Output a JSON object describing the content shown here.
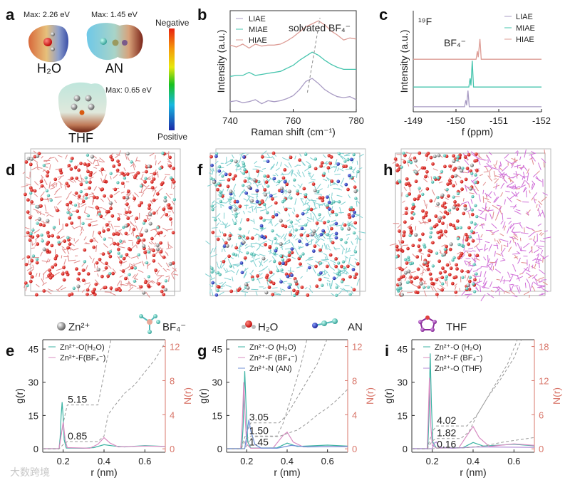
{
  "panels": {
    "a": "a",
    "b": "b",
    "c": "c",
    "d": "d",
    "f": "f",
    "h": "h",
    "e": "e",
    "g": "g",
    "i": "i"
  },
  "esp": {
    "h2o": {
      "name": "H₂O",
      "max": "Max: 2.26 eV"
    },
    "an": {
      "name": "AN",
      "max": "Max: 1.45 eV"
    },
    "thf": {
      "name": "THF",
      "max": "Max: 0.65 eV"
    },
    "colorbar": {
      "top": "Negative",
      "bottom": "Positive"
    }
  },
  "species_legend": [
    "Zn²⁺",
    "BF₄⁻",
    "H₂O",
    "AN",
    "THF"
  ],
  "watermark": "大数跨境",
  "colors": {
    "liae": "#a99cc4",
    "miae": "#45c4ad",
    "hiae": "#dd9c95",
    "teal": "#3cb3a3",
    "pink": "#d88cc2",
    "blue": "#6f8fd6",
    "purple": "#b38ad6",
    "naxis": "#d9776b"
  },
  "chart_data": [
    {
      "id": "b",
      "type": "line",
      "xlabel": "Raman shift (cm⁻¹)",
      "ylabel": "Intensity (a.u.)",
      "xlim": [
        740,
        780
      ],
      "ylim": [
        0,
        10
      ],
      "xticks": [
        740,
        760,
        780
      ],
      "annotation": "solvated BF₄⁻",
      "guide": [
        [
          764.5,
          1.9
        ],
        [
          768.5,
          9.3
        ]
      ],
      "x": [
        740,
        742,
        744,
        746,
        748,
        750,
        752,
        754,
        756,
        758,
        760,
        762,
        764,
        766,
        768,
        770,
        772,
        774,
        776,
        778,
        780
      ],
      "series": [
        {
          "name": "LIAE",
          "color": "#a99cc4",
          "values": [
            1.0,
            1.1,
            0.9,
            1.0,
            1.2,
            0.8,
            1.1,
            1.0,
            1.1,
            1.3,
            1.6,
            2.2,
            3.0,
            3.3,
            2.8,
            2.2,
            1.8,
            1.5,
            1.4,
            1.5,
            1.2
          ]
        },
        {
          "name": "MIAE",
          "color": "#45c4ad",
          "values": [
            3.5,
            3.6,
            3.6,
            3.9,
            3.6,
            3.7,
            3.8,
            3.9,
            4.0,
            4.3,
            4.6,
            5.1,
            5.5,
            5.9,
            5.6,
            5.1,
            4.7,
            4.4,
            4.2,
            4.2,
            4.2
          ]
        },
        {
          "name": "HIAE",
          "color": "#dd9c95",
          "values": [
            6.6,
            6.4,
            6.7,
            6.3,
            6.7,
            6.5,
            6.6,
            6.6,
            6.7,
            7.0,
            7.4,
            7.9,
            8.4,
            8.7,
            9.0,
            8.6,
            8.0,
            7.6,
            7.1,
            7.3,
            7.2
          ]
        }
      ]
    },
    {
      "id": "c",
      "type": "line",
      "xlabel": "f (ppm)",
      "ylabel": "Intensity (a.u.)",
      "nucleus": "¹⁹F",
      "annotation": "BF₄⁻",
      "xlim": [
        -149,
        -152
      ],
      "ylim": [
        0,
        20
      ],
      "xticks": [
        -149,
        -150,
        -151,
        -152
      ],
      "series": [
        {
          "name": "LIAE",
          "color": "#a99cc4",
          "points": [
            [
              -149,
              1
            ],
            [
              -150.2,
              1
            ],
            [
              -150.23,
              2.3
            ],
            [
              -150.25,
              1.3
            ],
            [
              -150.28,
              4.2
            ],
            [
              -150.31,
              1
            ],
            [
              -152,
              1
            ]
          ]
        },
        {
          "name": "MIAE",
          "color": "#45c4ad",
          "points": [
            [
              -149,
              4.9
            ],
            [
              -150.3,
              4.9
            ],
            [
              -150.33,
              6.6
            ],
            [
              -150.35,
              5.2
            ],
            [
              -150.38,
              10.1
            ],
            [
              -150.41,
              4.9
            ],
            [
              -152,
              4.9
            ]
          ]
        },
        {
          "name": "HIAE",
          "color": "#dd9c95",
          "points": [
            [
              -149,
              10.4
            ],
            [
              -150.47,
              10.4
            ],
            [
              -150.5,
              12
            ],
            [
              -150.52,
              10.8
            ],
            [
              -150.56,
              14.4
            ],
            [
              -150.59,
              10.4
            ],
            [
              -152,
              10.4
            ]
          ]
        }
      ]
    },
    {
      "id": "e",
      "type": "line",
      "xlabel": "r (nm)",
      "ylabel": "g(r)",
      "y2label": "N(r)",
      "xlim": [
        0.1,
        0.7
      ],
      "ylim": [
        -1.6,
        49.2
      ],
      "y2lim": [
        -0.4,
        12.8
      ],
      "xticks": [
        0.2,
        0.4,
        0.6
      ],
      "yticks": [
        0,
        15,
        30,
        45
      ],
      "y2ticks": [
        0,
        4,
        8,
        12
      ],
      "series": [
        {
          "name": "Zn²⁺-O(H₂O)",
          "color": "#3cb3a3",
          "g": [
            [
              0.1,
              0
            ],
            [
              0.18,
              0
            ],
            [
              0.185,
              5
            ],
            [
              0.19,
              15
            ],
            [
              0.195,
              21
            ],
            [
              0.2,
              14
            ],
            [
              0.205,
              4
            ],
            [
              0.215,
              0.3
            ],
            [
              0.3,
              0.2
            ],
            [
              0.35,
              0.5
            ],
            [
              0.4,
              1.8
            ],
            [
              0.45,
              1.2
            ],
            [
              0.5,
              0.8
            ],
            [
              0.6,
              1.4
            ],
            [
              0.7,
              1.0
            ]
          ],
          "n": [
            [
              0.1,
              0
            ],
            [
              0.18,
              0
            ],
            [
              0.2,
              3
            ],
            [
              0.22,
              5.15
            ],
            [
              0.37,
              5.15
            ],
            [
              0.44,
              13.5
            ]
          ],
          "cn": "5.15",
          "cn_at": 0.27
        },
        {
          "name": "Zn²⁺-F(BF₄⁻)",
          "color": "#d88cc2",
          "g": [
            [
              0.1,
              0
            ],
            [
              0.18,
              0
            ],
            [
              0.19,
              6
            ],
            [
              0.2,
              12
            ],
            [
              0.21,
              4
            ],
            [
              0.22,
              0.5
            ],
            [
              0.33,
              0.2
            ],
            [
              0.37,
              2
            ],
            [
              0.4,
              5
            ],
            [
              0.43,
              2.5
            ],
            [
              0.47,
              0.8
            ],
            [
              0.6,
              1.2
            ],
            [
              0.7,
              1
            ]
          ],
          "n": [
            [
              0.1,
              0
            ],
            [
              0.18,
              0
            ],
            [
              0.2,
              0.5
            ],
            [
              0.22,
              0.85
            ],
            [
              0.37,
              0.85
            ],
            [
              0.4,
              1.5
            ],
            [
              0.42,
              4
            ],
            [
              0.45,
              5
            ],
            [
              0.5,
              6.5
            ],
            [
              0.55,
              7.5
            ],
            [
              0.6,
              9
            ],
            [
              0.65,
              10.5
            ],
            [
              0.7,
              12.5
            ]
          ],
          "cn": "0.85",
          "cn_at": 0.27
        }
      ]
    },
    {
      "id": "g",
      "type": "line",
      "xlabel": "r (nm)",
      "ylabel": "g(r)",
      "y2label": "N(r)",
      "xlim": [
        0.1,
        0.7
      ],
      "ylim": [
        -1.6,
        49.2
      ],
      "y2lim": [
        -0.4,
        12.8
      ],
      "xticks": [
        0.2,
        0.4,
        0.6
      ],
      "yticks": [
        0,
        15,
        30,
        45
      ],
      "y2ticks": [
        0,
        4,
        8,
        12
      ],
      "series": [
        {
          "name": "Zn²⁺-O (H₂O)",
          "color": "#3cb3a3",
          "g": [
            [
              0.1,
              0
            ],
            [
              0.175,
              0
            ],
            [
              0.182,
              10
            ],
            [
              0.19,
              35
            ],
            [
              0.197,
              18
            ],
            [
              0.205,
              3
            ],
            [
              0.22,
              0.3
            ],
            [
              0.35,
              0.4
            ],
            [
              0.4,
              2.5
            ],
            [
              0.45,
              1
            ],
            [
              0.6,
              1.6
            ],
            [
              0.7,
              1.2
            ]
          ],
          "n": [
            [
              0.1,
              0
            ],
            [
              0.17,
              0
            ],
            [
              0.2,
              2
            ],
            [
              0.22,
              3.05
            ],
            [
              0.36,
              3.05
            ],
            [
              0.4,
              4
            ],
            [
              0.45,
              6
            ],
            [
              0.5,
              8
            ],
            [
              0.55,
              10
            ],
            [
              0.6,
              13
            ]
          ],
          "cn": "3.05",
          "cn_at": 0.26
        },
        {
          "name": "Zn²⁺-F (BF₄⁻)",
          "color": "#d88cc2",
          "g": [
            [
              0.1,
              0
            ],
            [
              0.17,
              0
            ],
            [
              0.178,
              12
            ],
            [
              0.185,
              30
            ],
            [
              0.193,
              12
            ],
            [
              0.2,
              2
            ],
            [
              0.22,
              0.2
            ],
            [
              0.33,
              0.3
            ],
            [
              0.38,
              6
            ],
            [
              0.4,
              7.5
            ],
            [
              0.43,
              3
            ],
            [
              0.48,
              0.8
            ],
            [
              0.7,
              1
            ]
          ],
          "n": [
            [
              0.1,
              0
            ],
            [
              0.17,
              0
            ],
            [
              0.2,
              1.2
            ],
            [
              0.22,
              1.5
            ],
            [
              0.35,
              1.5
            ],
            [
              0.38,
              3
            ],
            [
              0.42,
              6
            ],
            [
              0.47,
              10
            ],
            [
              0.5,
              13
            ]
          ],
          "cn": "1.50",
          "cn_at": 0.26
        },
        {
          "name": "Zn²⁺-N (AN)",
          "color": "#6f8fd6",
          "g": [
            [
              0.1,
              0
            ],
            [
              0.19,
              0
            ],
            [
              0.2,
              6
            ],
            [
              0.21,
              13
            ],
            [
              0.22,
              8
            ],
            [
              0.24,
              2
            ],
            [
              0.27,
              0.3
            ],
            [
              0.35,
              0.2
            ],
            [
              0.42,
              1.5
            ],
            [
              0.5,
              0.8
            ],
            [
              0.7,
              0.9
            ]
          ],
          "n": [
            [
              0.1,
              0
            ],
            [
              0.19,
              0
            ],
            [
              0.22,
              1.2
            ],
            [
              0.25,
              1.45
            ],
            [
              0.36,
              1.45
            ],
            [
              0.4,
              1.8
            ],
            [
              0.45,
              2.2
            ],
            [
              0.5,
              3
            ],
            [
              0.55,
              4
            ],
            [
              0.6,
              4.8
            ],
            [
              0.65,
              5.8
            ],
            [
              0.7,
              7
            ]
          ],
          "cn": "1.45",
          "cn_at": 0.26
        }
      ]
    },
    {
      "id": "i",
      "type": "line",
      "xlabel": "r (nm)",
      "ylabel": "g(r)",
      "y2label": "N(r)",
      "xlim": [
        0.1,
        0.7
      ],
      "ylim": [
        -1.6,
        49.2
      ],
      "y2lim": [
        -0.6,
        19.2
      ],
      "xticks": [
        0.2,
        0.4,
        0.6
      ],
      "yticks": [
        0,
        15,
        30,
        45
      ],
      "y2ticks": [
        0,
        6,
        12,
        18
      ],
      "series": [
        {
          "name": "Zn²⁺-O (H₂O)",
          "color": "#3cb3a3",
          "g": [
            [
              0.1,
              0
            ],
            [
              0.178,
              0
            ],
            [
              0.184,
              15
            ],
            [
              0.19,
              43
            ],
            [
              0.196,
              20
            ],
            [
              0.203,
              3
            ],
            [
              0.22,
              0.3
            ],
            [
              0.35,
              0.5
            ],
            [
              0.4,
              2.8
            ],
            [
              0.45,
              1.2
            ],
            [
              0.6,
              2
            ],
            [
              0.7,
              1.3
            ]
          ],
          "n": [
            [
              0.1,
              0
            ],
            [
              0.175,
              0
            ],
            [
              0.2,
              3
            ],
            [
              0.22,
              4.02
            ],
            [
              0.37,
              4.02
            ],
            [
              0.42,
              6
            ],
            [
              0.47,
              9
            ],
            [
              0.52,
              12
            ],
            [
              0.57,
              15
            ],
            [
              0.62,
              19.5
            ]
          ],
          "cn": "4.02",
          "cn_at": 0.27
        },
        {
          "name": "Zn²⁺-F (BF₄⁻)",
          "color": "#d88cc2",
          "g": [
            [
              0.1,
              0
            ],
            [
              0.175,
              0
            ],
            [
              0.18,
              12
            ],
            [
              0.186,
              32
            ],
            [
              0.193,
              10
            ],
            [
              0.2,
              1.5
            ],
            [
              0.22,
              0.3
            ],
            [
              0.33,
              0.4
            ],
            [
              0.37,
              6
            ],
            [
              0.4,
              10
            ],
            [
              0.43,
              5
            ],
            [
              0.48,
              1
            ],
            [
              0.6,
              2.2
            ],
            [
              0.7,
              1.5
            ]
          ],
          "n": [
            [
              0.1,
              0
            ],
            [
              0.175,
              0
            ],
            [
              0.2,
              1.4
            ],
            [
              0.22,
              1.82
            ],
            [
              0.34,
              1.82
            ],
            [
              0.38,
              3
            ],
            [
              0.42,
              6
            ],
            [
              0.47,
              9
            ],
            [
              0.53,
              12
            ],
            [
              0.6,
              16
            ],
            [
              0.64,
              19.5
            ]
          ],
          "cn": "1.82",
          "cn_at": 0.27
        },
        {
          "name": "Zn²⁺-O (THF)",
          "color": "#b38ad6",
          "g": [
            [
              0.1,
              0
            ],
            [
              0.2,
              0
            ],
            [
              0.21,
              2.5
            ],
            [
              0.22,
              3
            ],
            [
              0.235,
              0.6
            ],
            [
              0.3,
              0.2
            ],
            [
              0.42,
              0.8
            ],
            [
              0.7,
              0.6
            ]
          ],
          "n": [
            [
              0.1,
              0
            ],
            [
              0.2,
              0
            ],
            [
              0.23,
              0.16
            ],
            [
              0.36,
              0.16
            ],
            [
              0.45,
              0.5
            ],
            [
              0.55,
              1.2
            ],
            [
              0.7,
              2
            ]
          ],
          "cn": "0.16",
          "cn_at": 0.27
        }
      ]
    }
  ]
}
